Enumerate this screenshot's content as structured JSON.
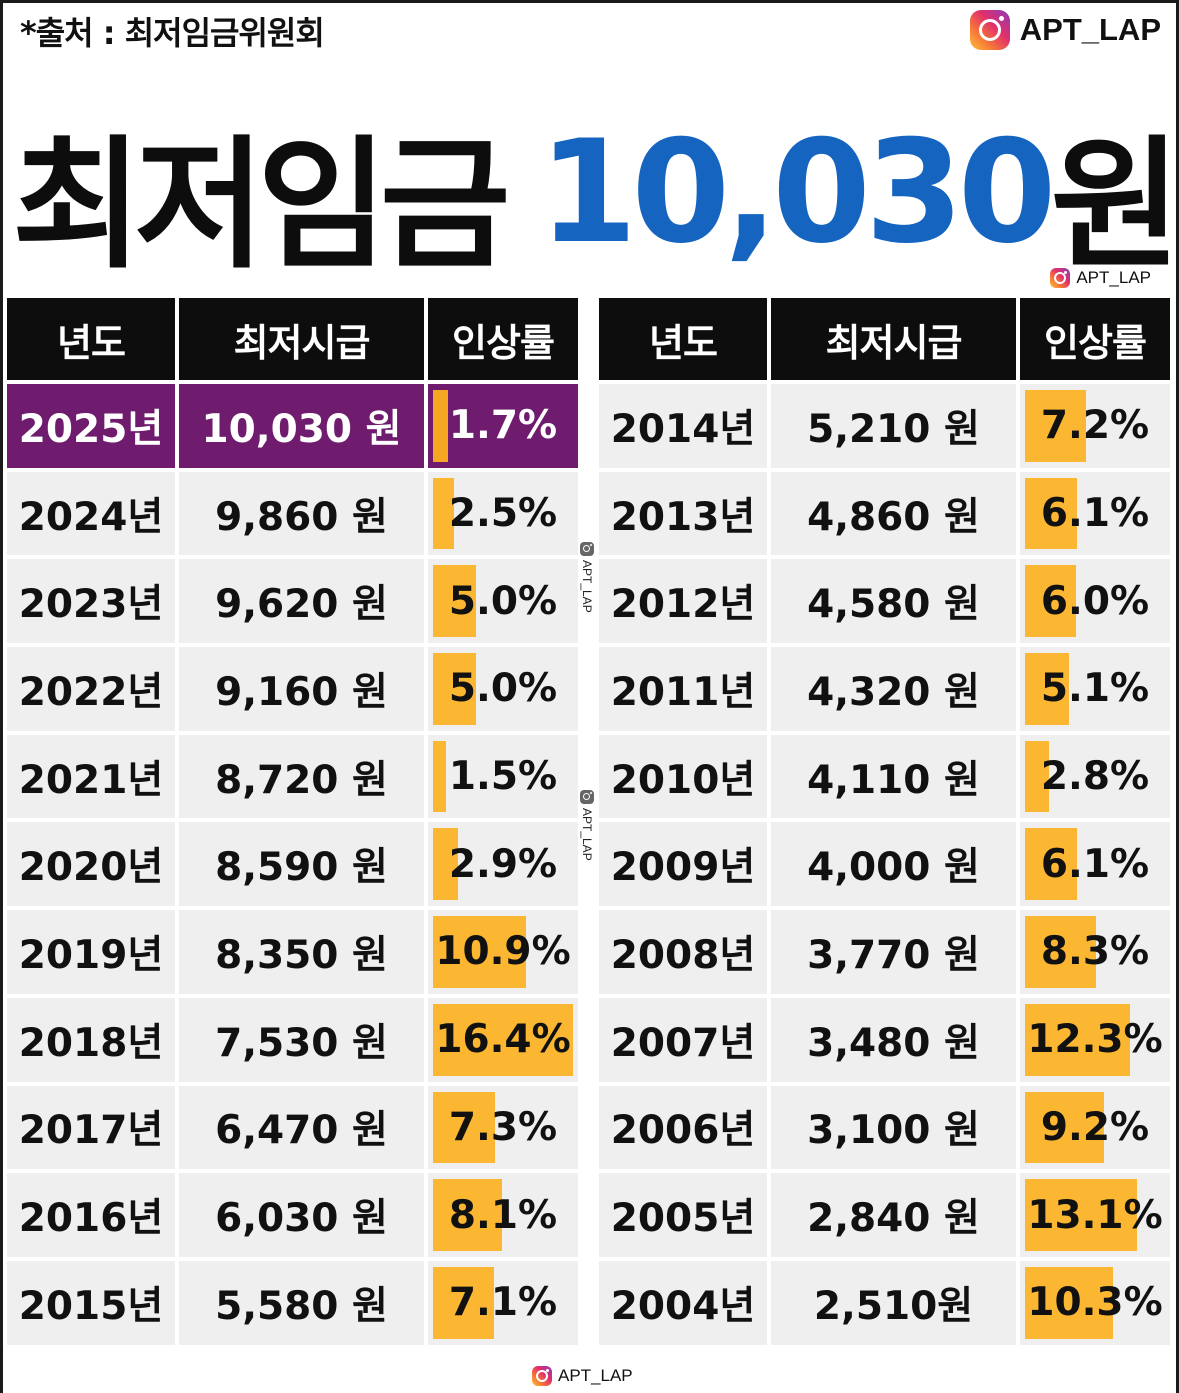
{
  "source": "*출처 : 최저임금위원회",
  "brand": "APT_LAP",
  "headline": {
    "title": "최저임금",
    "amount": "10,030",
    "unit": "원"
  },
  "left_table": {
    "headers": [
      "년도",
      "최저시급",
      "인상률"
    ],
    "rows": [
      {
        "year": "2025년",
        "wage": "10,030 원",
        "rate": "1.7%",
        "rate_value": 1.7,
        "current": true
      },
      {
        "year": "2024년",
        "wage": "9,860 원",
        "rate": "2.5%",
        "rate_value": 2.5
      },
      {
        "year": "2023년",
        "wage": "9,620 원",
        "rate": "5.0%",
        "rate_value": 5.0
      },
      {
        "year": "2022년",
        "wage": "9,160 원",
        "rate": "5.0%",
        "rate_value": 5.0
      },
      {
        "year": "2021년",
        "wage": "8,720 원",
        "rate": "1.5%",
        "rate_value": 1.5
      },
      {
        "year": "2020년",
        "wage": "8,590 원",
        "rate": "2.9%",
        "rate_value": 2.9
      },
      {
        "year": "2019년",
        "wage": "8,350 원",
        "rate": "10.9%",
        "rate_value": 10.9
      },
      {
        "year": "2018년",
        "wage": "7,530 원",
        "rate": "16.4%",
        "rate_value": 16.4
      },
      {
        "year": "2017년",
        "wage": "6,470 원",
        "rate": "7.3%",
        "rate_value": 7.3
      },
      {
        "year": "2016년",
        "wage": "6,030 원",
        "rate": "8.1%",
        "rate_value": 8.1
      },
      {
        "year": "2015년",
        "wage": "5,580 원",
        "rate": "7.1%",
        "rate_value": 7.1
      }
    ]
  },
  "right_table": {
    "headers": [
      "년도",
      "최저시급",
      "인상률"
    ],
    "rows": [
      {
        "year": "2014년",
        "wage": "5,210 원",
        "rate": "7.2%",
        "rate_value": 7.2
      },
      {
        "year": "2013년",
        "wage": "4,860 원",
        "rate": "6.1%",
        "rate_value": 6.1
      },
      {
        "year": "2012년",
        "wage": "4,580 원",
        "rate": "6.0%",
        "rate_value": 6.0
      },
      {
        "year": "2011년",
        "wage": "4,320 원",
        "rate": "5.1%",
        "rate_value": 5.1
      },
      {
        "year": "2010년",
        "wage": "4,110 원",
        "rate": "2.8%",
        "rate_value": 2.8
      },
      {
        "year": "2009년",
        "wage": "4,000 원",
        "rate": "6.1%",
        "rate_value": 6.1
      },
      {
        "year": "2008년",
        "wage": "3,770 원",
        "rate": "8.3%",
        "rate_value": 8.3
      },
      {
        "year": "2007년",
        "wage": "3,480 원",
        "rate": "12.3%",
        "rate_value": 12.3
      },
      {
        "year": "2006년",
        "wage": "3,100 원",
        "rate": "9.2%",
        "rate_value": 9.2
      },
      {
        "year": "2005년",
        "wage": "2,840 원",
        "rate": "13.1%",
        "rate_value": 13.1
      },
      {
        "year": "2004년",
        "wage": "2,510원",
        "rate": "10.3%",
        "rate_value": 10.3
      }
    ]
  },
  "colors": {
    "headline_blue": "#1565c0",
    "header_bg": "#0d0d0d",
    "current_row": "#6f1c6f",
    "bar": "#fbb731",
    "cell_bg": "#efefef"
  },
  "icons": [
    "instagram-icon"
  ]
}
